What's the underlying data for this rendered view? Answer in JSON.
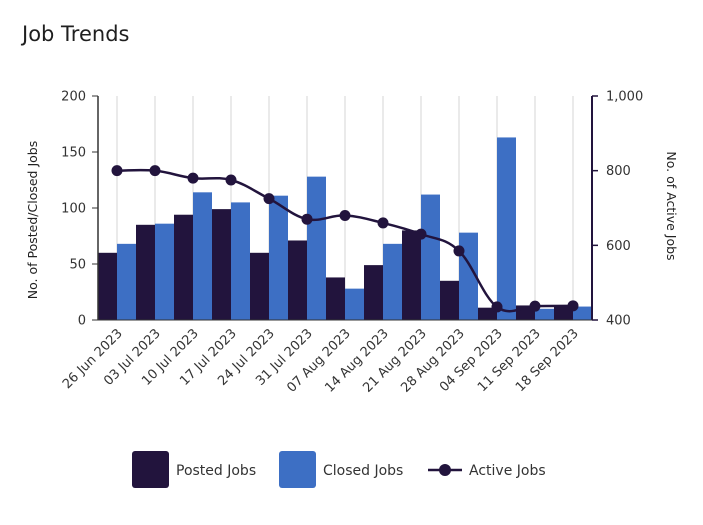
{
  "chart_data": {
    "type": "bar",
    "title": "Job Trends",
    "categories": [
      "26 Jun 2023",
      "03 Jul 2023",
      "10 Jul 2023",
      "17 Jul 2023",
      "24 Jul 2023",
      "31 Jul 2023",
      "07 Aug 2023",
      "14 Aug 2023",
      "21 Aug 2023",
      "28 Aug 2023",
      "04 Sep 2023",
      "11 Sep 2023",
      "18 Sep 2023"
    ],
    "series": [
      {
        "name": "Posted Jobs",
        "type": "bar",
        "axis": "left",
        "color": "#22143d",
        "values": [
          60,
          85,
          94,
          99,
          60,
          71,
          38,
          49,
          80,
          35,
          11,
          13,
          12
        ]
      },
      {
        "name": "Closed Jobs",
        "type": "bar",
        "axis": "left",
        "color": "#3d6fc4",
        "values": [
          68,
          86,
          114,
          105,
          111,
          128,
          28,
          68,
          112,
          78,
          163,
          10,
          12
        ]
      },
      {
        "name": "Active Jobs",
        "type": "line",
        "axis": "right",
        "color": "#22143d",
        "values": [
          800,
          800,
          780,
          775,
          725,
          670,
          680,
          660,
          630,
          585,
          435,
          437,
          438
        ]
      }
    ],
    "ylabel": "No. of Posted/Closed Jobs",
    "y2label": "No. of Active Jobs",
    "ylim": [
      0,
      200
    ],
    "y2lim": [
      400,
      1000
    ],
    "yticks": [
      "0",
      "50",
      "100",
      "150",
      "200"
    ],
    "y2ticks": [
      "400",
      "600",
      "800",
      "1,000"
    ],
    "grid": "vertical",
    "legend_position": "bottom"
  }
}
